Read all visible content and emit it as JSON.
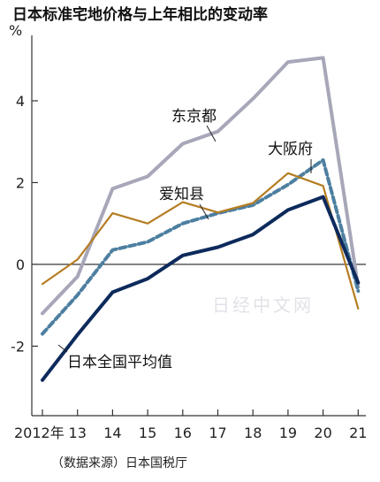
{
  "chart_data": {
    "type": "line",
    "title": "日本标准宅地价格与上年相比的变动率",
    "unit": "%",
    "source": "（数据来源）日本国税厅",
    "watermark": "日经中文网",
    "categories": [
      "2012年",
      "13",
      "14",
      "15",
      "16",
      "17",
      "18",
      "19",
      "20",
      "21"
    ],
    "ylim": [
      -3.7,
      5.6
    ],
    "yticks": [
      -2,
      0,
      2,
      4
    ],
    "ytick_labels": [
      "-2",
      "0",
      "2",
      "4"
    ],
    "zero_line": true,
    "grid": false,
    "series": [
      {
        "name": "东京都",
        "color": "#a7a7b9",
        "dash": "solid",
        "width": 4,
        "values": [
          -1.2,
          -0.3,
          1.85,
          2.15,
          2.95,
          3.25,
          4.05,
          4.95,
          5.05,
          -0.55
        ]
      },
      {
        "name": "大阪府",
        "color": "#4d7fa0",
        "dash": "dashed",
        "width": 4,
        "values": [
          -1.7,
          -0.75,
          0.35,
          0.55,
          1.0,
          1.25,
          1.45,
          1.95,
          2.55,
          -0.65
        ]
      },
      {
        "name": "爱知县",
        "color": "#b57d22",
        "dash": "solid",
        "width": 2.2,
        "values": [
          -0.48,
          0.12,
          1.25,
          1.0,
          1.52,
          1.27,
          1.5,
          2.23,
          1.92,
          -1.08
        ]
      },
      {
        "name": "日本全国平均值",
        "color": "#0d2a5c",
        "dash": "solid",
        "width": 4,
        "values": [
          -2.83,
          -1.72,
          -0.68,
          -0.35,
          0.22,
          0.42,
          0.73,
          1.33,
          1.65,
          -0.45
        ]
      }
    ]
  }
}
